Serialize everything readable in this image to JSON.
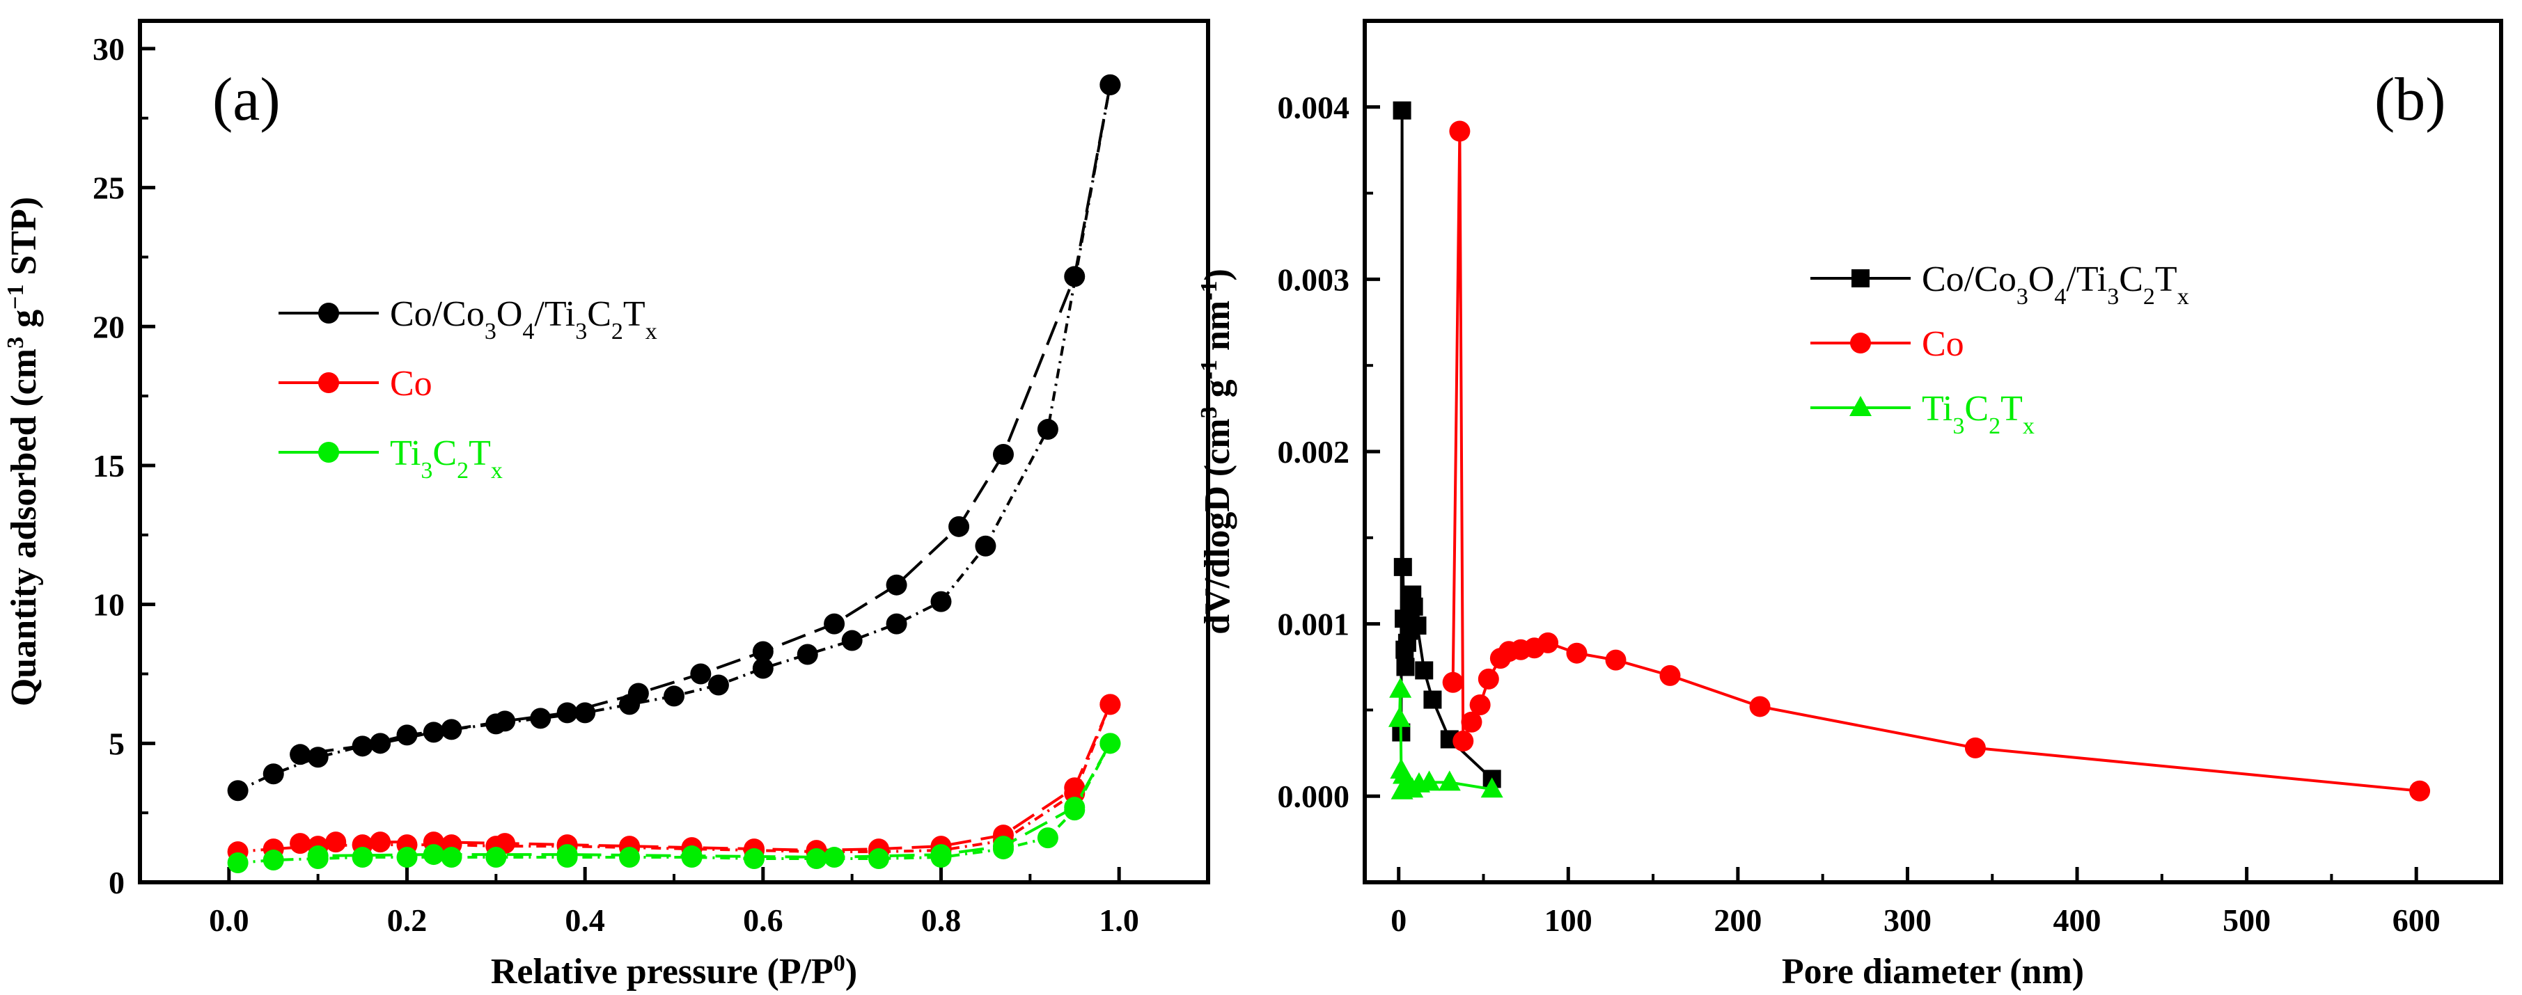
{
  "chart_data": [
    {
      "panel_label": "(a)",
      "type": "line",
      "xlabel": "Relative pressure (P/P",
      "xlabel_sup": "0",
      "xlabel_end": ")",
      "ylabel_parts": {
        "a": "Quantity adsorbed (cm",
        "sup1": "3",
        "b": " g",
        "sup2": "−1",
        "c": " STP)"
      },
      "xlim": [
        -0.1,
        1.1
      ],
      "ylim": [
        0,
        31
      ],
      "xticks": [
        0.0,
        0.2,
        0.4,
        0.6,
        0.8,
        1.0
      ],
      "xtick_labels": [
        "0.0",
        "0.2",
        "0.4",
        "0.6",
        "0.8",
        "1.0"
      ],
      "yticks": [
        0,
        5,
        10,
        15,
        20,
        25,
        30
      ],
      "ytick_labels": [
        "0",
        "5",
        "10",
        "15",
        "20",
        "25",
        "30"
      ],
      "legend_position": "left",
      "series": [
        {
          "name": "Co/Co3O4/Ti3C2Tx",
          "legend": [
            [
              "Co/Co",
              ""
            ],
            [
              "3",
              "sub"
            ],
            [
              "O",
              ""
            ],
            [
              "4",
              "sub"
            ],
            [
              "/Ti",
              ""
            ],
            [
              "3",
              "sub"
            ],
            [
              "C",
              ""
            ],
            [
              "2",
              "sub"
            ],
            [
              "T",
              ""
            ],
            [
              "x",
              "sub"
            ]
          ],
          "color": "#000000",
          "marker": "circle",
          "adsorption": {
            "x": [
              0.01,
              0.05,
              0.1,
              0.15,
              0.2,
              0.25,
              0.3,
              0.35,
              0.4,
              0.45,
              0.5,
              0.55,
              0.6,
              0.65,
              0.7,
              0.75,
              0.8,
              0.85,
              0.92,
              0.99
            ],
            "y": [
              3.3,
              3.9,
              4.5,
              4.9,
              5.3,
              5.5,
              5.7,
              5.9,
              6.1,
              6.4,
              6.7,
              7.1,
              7.7,
              8.2,
              8.7,
              9.3,
              10.1,
              12.1,
              16.3,
              28.7
            ]
          },
          "desorption": {
            "x": [
              0.99,
              0.95,
              0.87,
              0.82,
              0.75,
              0.68,
              0.6,
              0.53,
              0.46,
              0.38,
              0.31,
              0.23,
              0.17,
              0.08
            ],
            "y": [
              28.7,
              21.8,
              15.4,
              12.8,
              10.7,
              9.3,
              8.3,
              7.5,
              6.8,
              6.1,
              5.8,
              5.4,
              5.0,
              4.6
            ]
          }
        },
        {
          "name": "Co",
          "legend": [
            [
              "Co",
              ""
            ]
          ],
          "color": "#ff0000",
          "marker": "circle",
          "adsorption": {
            "x": [
              0.01,
              0.05,
              0.1,
              0.15,
              0.2,
              0.25,
              0.3,
              0.38,
              0.45,
              0.52,
              0.59,
              0.66,
              0.73,
              0.8,
              0.87,
              0.95,
              0.99
            ],
            "y": [
              1.1,
              1.2,
              1.3,
              1.35,
              1.35,
              1.35,
              1.3,
              1.3,
              1.25,
              1.2,
              1.15,
              1.1,
              1.1,
              1.15,
              1.5,
              3.2,
              6.4
            ]
          },
          "desorption": {
            "x": [
              0.99,
              0.95,
              0.87,
              0.8,
              0.73,
              0.66,
              0.59,
              0.52,
              0.45,
              0.38,
              0.31,
              0.23,
              0.17,
              0.12,
              0.08
            ],
            "y": [
              6.4,
              3.4,
              1.7,
              1.3,
              1.2,
              1.15,
              1.2,
              1.25,
              1.3,
              1.35,
              1.4,
              1.45,
              1.45,
              1.45,
              1.4
            ]
          }
        },
        {
          "name": "Ti3C2Tx",
          "legend": [
            [
              "Ti",
              ""
            ],
            [
              "3",
              "sub"
            ],
            [
              "C",
              ""
            ],
            [
              "2",
              "sub"
            ],
            [
              "T",
              ""
            ],
            [
              "x",
              "sub"
            ]
          ],
          "color": "#00ee00",
          "marker": "circle",
          "adsorption": {
            "x": [
              0.01,
              0.05,
              0.1,
              0.15,
              0.2,
              0.25,
              0.3,
              0.38,
              0.45,
              0.52,
              0.59,
              0.66,
              0.73,
              0.8,
              0.87,
              0.92,
              0.95,
              0.99
            ],
            "y": [
              0.7,
              0.8,
              0.85,
              0.9,
              0.9,
              0.9,
              0.9,
              0.9,
              0.9,
              0.9,
              0.85,
              0.85,
              0.85,
              0.9,
              1.2,
              1.6,
              2.6,
              5.0
            ]
          },
          "desorption": {
            "x": [
              0.99,
              0.95,
              0.87,
              0.8,
              0.68,
              0.52,
              0.38,
              0.23,
              0.1
            ],
            "y": [
              5.0,
              2.7,
              1.3,
              1.0,
              0.9,
              0.95,
              1.0,
              1.0,
              0.95
            ]
          }
        }
      ]
    },
    {
      "panel_label": "(b)",
      "type": "line",
      "xlabel": "Pore diameter (nm)",
      "ylabel_parts": {
        "a": "dV/dlogD (cm",
        "sup1": "3",
        "b": " g",
        "sup2": "-1",
        "c": " nm",
        "sup3": "-1",
        "d": ")"
      },
      "xlim": [
        -20,
        650
      ],
      "ylim": [
        -0.0005,
        0.0045
      ],
      "xticks": [
        0,
        100,
        200,
        300,
        400,
        500,
        600
      ],
      "xtick_labels": [
        "0",
        "100",
        "200",
        "300",
        "400",
        "500",
        "600"
      ],
      "yticks": [
        0.0,
        0.001,
        0.002,
        0.003,
        0.004
      ],
      "ytick_labels": [
        "0.000",
        "0.001",
        "0.002",
        "0.003",
        "0.004"
      ],
      "legend_position": "center-right",
      "series": [
        {
          "name": "Co/Co3O4/Ti3C2Tx",
          "legend": [
            [
              "Co/Co",
              ""
            ],
            [
              "3",
              "sub"
            ],
            [
              "O",
              ""
            ],
            [
              "4",
              "sub"
            ],
            [
              "/Ti",
              ""
            ],
            [
              "3",
              "sub"
            ],
            [
              "C",
              ""
            ],
            [
              "2",
              "sub"
            ],
            [
              "T",
              ""
            ],
            [
              "x",
              "sub"
            ]
          ],
          "color": "#000000",
          "marker": "square",
          "x": [
            1.5,
            2,
            2.5,
            3,
            3.5,
            4,
            5,
            6,
            7,
            8,
            9,
            11,
            15,
            20,
            30,
            55
          ],
          "y": [
            0.00037,
            0.00398,
            0.00133,
            0.00103,
            0.00085,
            0.00075,
            0.00089,
            0.00096,
            0.00107,
            0.00117,
            0.0011,
            0.00099,
            0.00073,
            0.00056,
            0.00033,
            0.0001
          ]
        },
        {
          "name": "Co",
          "legend": [
            [
              "Co",
              ""
            ]
          ],
          "color": "#ff0000",
          "marker": "circle",
          "x": [
            32,
            36,
            38,
            43,
            48,
            53,
            60,
            65,
            72,
            80,
            88,
            105,
            128,
            160,
            213,
            340,
            602
          ],
          "y": [
            0.00066,
            0.00386,
            0.00032,
            0.00043,
            0.00053,
            0.00068,
            0.0008,
            0.00084,
            0.00085,
            0.00086,
            0.00089,
            0.00083,
            0.00079,
            0.0007,
            0.00052,
            0.00028,
            3e-05
          ]
        },
        {
          "name": "Ti3C2Tx",
          "legend": [
            [
              "Ti",
              ""
            ],
            [
              "3",
              "sub"
            ],
            [
              "C",
              ""
            ],
            [
              "2",
              "sub"
            ],
            [
              "T",
              ""
            ],
            [
              "x",
              "sub"
            ]
          ],
          "color": "#00ee00",
          "marker": "triangle",
          "x": [
            0.5,
            1,
            1.5,
            2,
            3,
            5,
            8,
            12,
            18,
            30,
            55
          ],
          "y": [
            0.00045,
            0.00062,
            0.00015,
            3e-05,
            0.00012,
            5e-05,
            4e-05,
            7e-05,
            8e-05,
            8e-05,
            4e-05
          ]
        }
      ]
    }
  ]
}
